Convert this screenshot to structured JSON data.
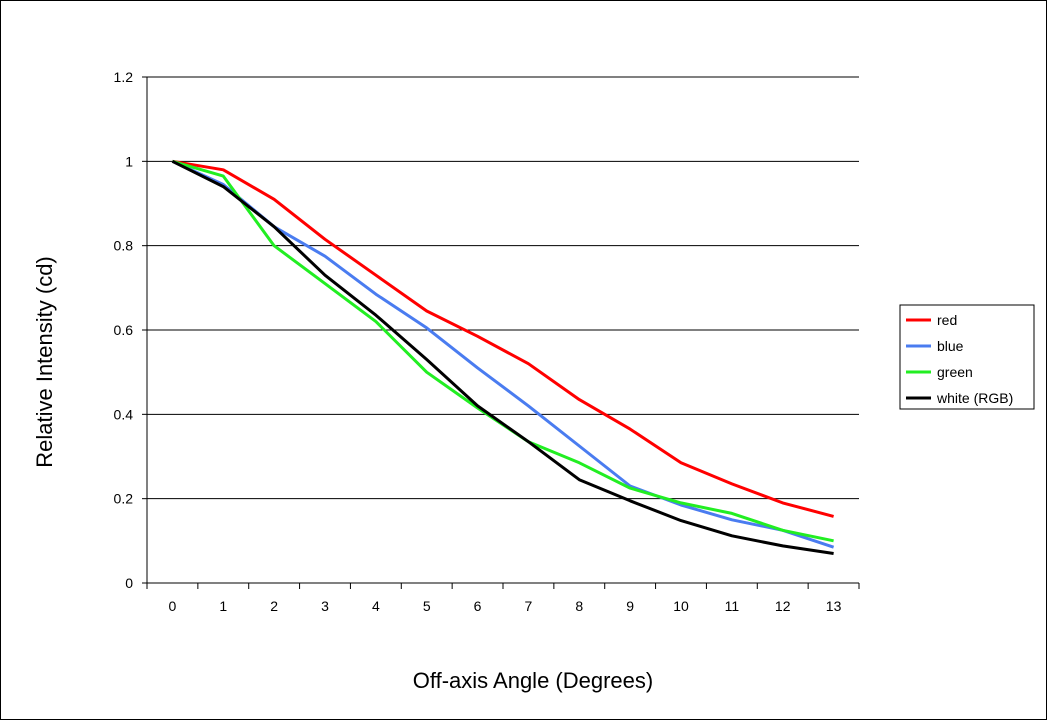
{
  "chart_data": {
    "type": "line",
    "title": "",
    "xlabel": "Off-axis Angle (Degrees)",
    "ylabel": "Relative Intensity (cd)",
    "x": [
      0,
      1,
      2,
      3,
      4,
      5,
      6,
      7,
      8,
      9,
      10,
      11,
      12,
      13
    ],
    "categories": [
      "0",
      "1",
      "2",
      "3",
      "4",
      "5",
      "6",
      "7",
      "8",
      "9",
      "10",
      "11",
      "12",
      "13"
    ],
    "ylim": [
      0,
      1.2
    ],
    "yticks": [
      "0",
      "0.2",
      "0.4",
      "0.6",
      "0.8",
      "1",
      "1.2"
    ],
    "ytick_values": [
      0,
      0.2,
      0.4,
      0.6,
      0.8,
      1.0,
      1.2
    ],
    "grid": "horizontal",
    "legend_position": "right",
    "series": [
      {
        "name": "red",
        "color": "#ff0000",
        "values": [
          1.0,
          0.98,
          0.91,
          0.815,
          0.73,
          0.645,
          0.585,
          0.52,
          0.435,
          0.365,
          0.285,
          0.235,
          0.19,
          0.158
        ]
      },
      {
        "name": "blue",
        "color": "#4a7cf0",
        "values": [
          1.0,
          0.945,
          0.845,
          0.775,
          0.685,
          0.605,
          0.51,
          0.42,
          0.325,
          0.23,
          0.185,
          0.15,
          0.125,
          0.085
        ]
      },
      {
        "name": "green",
        "color": "#22ee22",
        "values": [
          1.0,
          0.965,
          0.8,
          0.71,
          0.62,
          0.5,
          0.415,
          0.335,
          0.285,
          0.225,
          0.19,
          0.165,
          0.125,
          0.1
        ]
      },
      {
        "name": "white (RGB)",
        "color": "#000000",
        "values": [
          1.0,
          0.94,
          0.845,
          0.73,
          0.635,
          0.53,
          0.42,
          0.335,
          0.245,
          0.195,
          0.148,
          0.112,
          0.088,
          0.07
        ]
      }
    ]
  }
}
